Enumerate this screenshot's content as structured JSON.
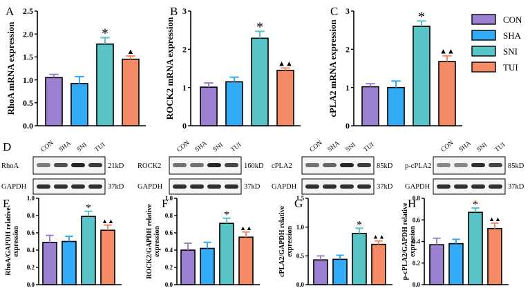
{
  "colors": {
    "CON": "#9b7fd0",
    "SHA": "#33aaf5",
    "SNI": "#58c4c8",
    "TUI": "#f58a66",
    "axis": "#000000",
    "band": "#1a1a1a"
  },
  "legend": {
    "items": [
      {
        "key": "CON",
        "label": "CON"
      },
      {
        "key": "SHA",
        "label": "SHA"
      },
      {
        "key": "SNI",
        "label": "SNI"
      },
      {
        "key": "TUI",
        "label": "TUI"
      }
    ]
  },
  "chart_data": [
    {
      "panel": "A",
      "type": "bar",
      "ylabel": "RhoA mRNA expression",
      "categories": [
        "CON",
        "SHA",
        "SNI",
        "TUI"
      ],
      "values": [
        1.05,
        0.92,
        1.78,
        1.45
      ],
      "errors": [
        0.07,
        0.15,
        0.14,
        0.07
      ],
      "annotations": [
        "",
        "",
        "*",
        "▲"
      ],
      "ylim": [
        0,
        2.5
      ],
      "yticks": [
        "0.0",
        "0.5",
        "1.0",
        "1.5",
        "2.0",
        "2.5"
      ],
      "tickvals": [
        0,
        0.5,
        1.0,
        1.5,
        2.0,
        2.5
      ]
    },
    {
      "panel": "B",
      "type": "bar",
      "ylabel": "ROCK2 mRNA expression",
      "categories": [
        "CON",
        "SHA",
        "SNI",
        "TUI"
      ],
      "values": [
        1.01,
        1.15,
        2.29,
        1.45
      ],
      "errors": [
        0.11,
        0.12,
        0.18,
        0.06
      ],
      "annotations": [
        "",
        "",
        "*",
        "▲▲"
      ],
      "ylim": [
        0,
        3
      ],
      "yticks": [
        "0",
        "1",
        "2",
        "3"
      ],
      "tickvals": [
        0,
        1,
        2,
        3
      ]
    },
    {
      "panel": "C",
      "type": "bar",
      "ylabel": "cPLA2 mRNA expression",
      "categories": [
        "CON",
        "SHA",
        "SNI",
        "TUI"
      ],
      "values": [
        1.02,
        1.0,
        2.6,
        1.68
      ],
      "errors": [
        0.08,
        0.17,
        0.14,
        0.15
      ],
      "annotations": [
        "",
        "",
        "*",
        "▲▲"
      ],
      "ylim": [
        0,
        3
      ],
      "yticks": [
        "0",
        "1",
        "2",
        "3"
      ],
      "tickvals": [
        0,
        1,
        2,
        3
      ]
    },
    {
      "panel": "E",
      "type": "bar",
      "ylabel": "RhoA/GAPDH relative expression",
      "categories": [
        "CON",
        "SHA",
        "SNI",
        "TUI"
      ],
      "values": [
        0.49,
        0.5,
        0.79,
        0.63
      ],
      "errors": [
        0.08,
        0.06,
        0.06,
        0.06
      ],
      "annotations": [
        "",
        "",
        "*",
        "▲▲"
      ],
      "ylim": [
        0,
        1.0
      ],
      "yticks": [
        "0.0",
        "0.2",
        "0.4",
        "0.6",
        "0.8",
        "1.0"
      ],
      "tickvals": [
        0,
        0.2,
        0.4,
        0.6,
        0.8,
        1.0
      ]
    },
    {
      "panel": "F",
      "type": "bar",
      "ylabel": "ROCK2/GAPDH relative expression",
      "categories": [
        "CON",
        "SHA",
        "SNI",
        "TUI"
      ],
      "values": [
        0.4,
        0.42,
        0.71,
        0.55
      ],
      "errors": [
        0.08,
        0.07,
        0.06,
        0.06
      ],
      "annotations": [
        "",
        "",
        "*",
        "▲▲"
      ],
      "ylim": [
        0,
        1.0
      ],
      "yticks": [
        "0.0",
        "0.2",
        "0.4",
        "0.6",
        "0.8",
        "1.0"
      ],
      "tickvals": [
        0,
        0.2,
        0.4,
        0.6,
        0.8,
        1.0
      ]
    },
    {
      "panel": "G",
      "type": "bar",
      "ylabel": "cPLA2/GAPDH relative expression",
      "categories": [
        "CON",
        "SHA",
        "SNI",
        "TUI"
      ],
      "values": [
        0.43,
        0.44,
        0.89,
        0.7
      ],
      "errors": [
        0.07,
        0.07,
        0.09,
        0.06
      ],
      "annotations": [
        "",
        "",
        "*",
        "▲▲"
      ],
      "ylim": [
        0,
        1.5
      ],
      "yticks": [
        "0.0",
        "0.5",
        "1.0",
        "1.5"
      ],
      "tickvals": [
        0,
        0.5,
        1.0,
        1.5
      ]
    },
    {
      "panel": "H",
      "type": "bar",
      "ylabel": "p-cPLA2/GAPDH relative expression",
      "categories": [
        "CON",
        "SHA",
        "SNI",
        "TUI"
      ],
      "values": [
        0.37,
        0.38,
        0.67,
        0.52
      ],
      "errors": [
        0.06,
        0.04,
        0.04,
        0.05
      ],
      "annotations": [
        "",
        "",
        "*",
        "▲▲"
      ],
      "ylim": [
        0,
        0.8
      ],
      "yticks": [
        "0.0",
        "0.2",
        "0.4",
        "0.6",
        "0.8"
      ],
      "tickvals": [
        0,
        0.2,
        0.4,
        0.6,
        0.8
      ]
    }
  ],
  "blots": {
    "panel": "D",
    "lane_labels": [
      "CON",
      "SHA",
      "SNI",
      "TUI"
    ],
    "items": [
      {
        "protein": "RhoA",
        "size": "21kD",
        "gapdh": "GAPDH",
        "gapdh_size": "37kD",
        "intensity": [
          0.55,
          0.75,
          0.95,
          0.85
        ]
      },
      {
        "protein": "ROCK2",
        "size": "160kD",
        "gapdh": "GAPDH",
        "gapdh_size": "37kD",
        "intensity": [
          0.6,
          0.6,
          0.95,
          0.8
        ]
      },
      {
        "protein": "cPLA2",
        "size": "85kD",
        "gapdh": "GAPDH",
        "gapdh_size": "37kD",
        "intensity": [
          0.6,
          0.65,
          0.95,
          0.85
        ]
      },
      {
        "protein": "p-cPLA2",
        "size": "85kD",
        "gapdh": "GAPDH",
        "gapdh_size": "37kD",
        "intensity": [
          0.5,
          0.5,
          0.9,
          0.8
        ]
      }
    ]
  }
}
